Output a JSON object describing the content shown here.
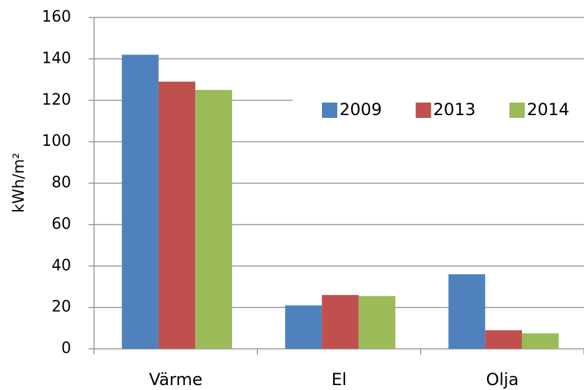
{
  "chart_data": {
    "type": "bar",
    "y_label": "kWh/m²",
    "categories": [
      "Värme",
      "El",
      "Olja"
    ],
    "series": [
      {
        "name": "2009",
        "color": "#4f81bd",
        "values": [
          142,
          21,
          36
        ]
      },
      {
        "name": "2013",
        "color": "#c0504d",
        "values": [
          129,
          26,
          9
        ]
      },
      {
        "name": "2014",
        "color": "#9bbb59",
        "values": [
          125,
          25.5,
          7.5
        ]
      }
    ],
    "ylim": [
      0,
      160
    ],
    "yticks": [
      0,
      20,
      40,
      60,
      80,
      100,
      120,
      140,
      160
    ],
    "grid": true,
    "legend": "right"
  }
}
